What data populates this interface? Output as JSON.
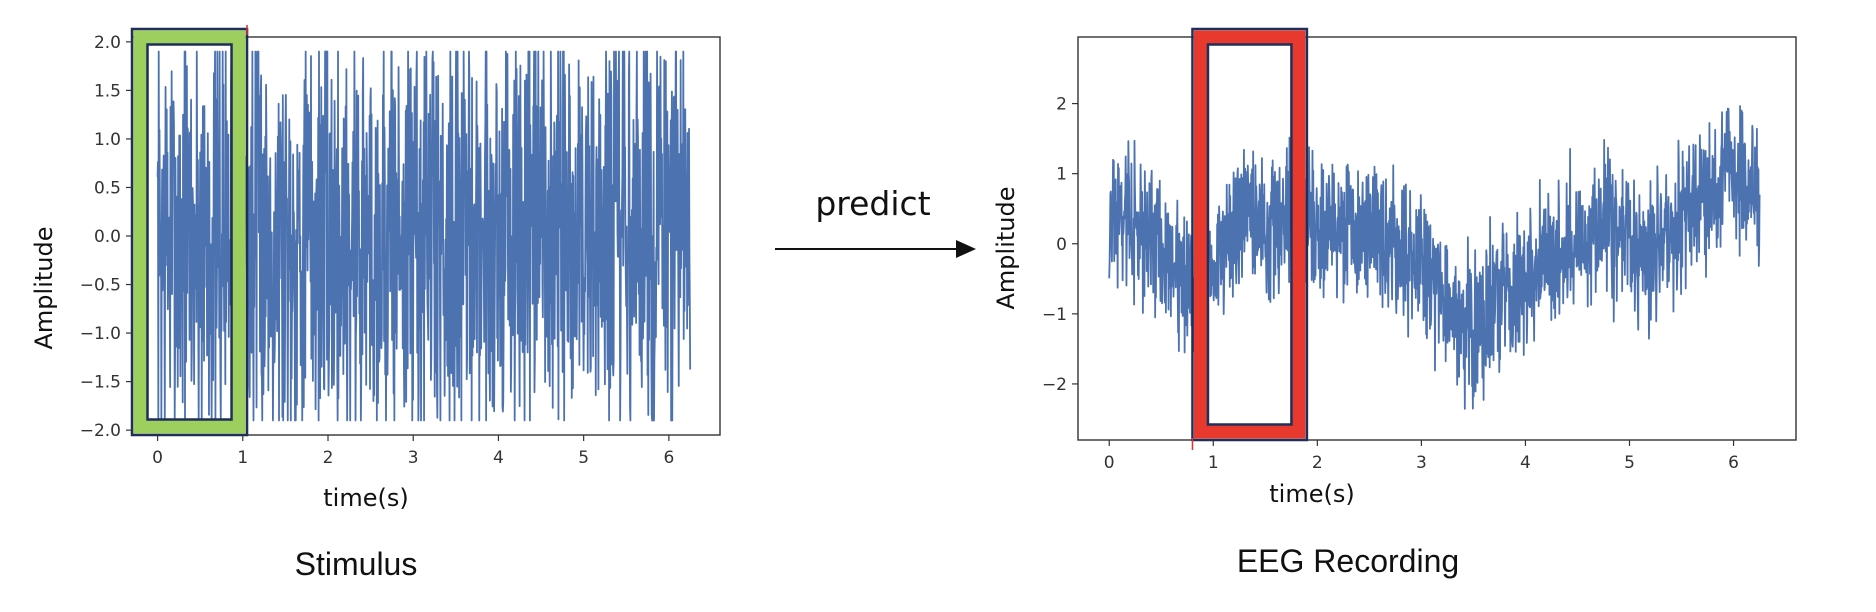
{
  "figure": {
    "arrow_label": "predict"
  },
  "chart_data": [
    {
      "type": "line",
      "caption": "Stimulus",
      "xlabel": "time(s)",
      "ylabel": "Amplitude",
      "xlim": [
        -0.3,
        6.6
      ],
      "ylim": [
        -2.05,
        2.05
      ],
      "xticks": [
        0,
        1,
        2,
        3,
        4,
        5,
        6
      ],
      "yticks": [
        2.0,
        1.5,
        1.0,
        0.5,
        0.0,
        -0.5,
        -1.0,
        -1.5,
        -2.0
      ],
      "ytick_labels": [
        "2.0",
        "1.5",
        "1.0",
        "0.5",
        "0.0",
        "−0.5",
        "−1.0",
        "−1.5",
        "−2.0"
      ],
      "x_range": [
        0,
        6.25
      ],
      "signal": "noise, amplitude clipped at ±1.9",
      "line_color": "#4c72b0",
      "highlight": {
        "x": [
          -0.3,
          1.05
        ],
        "outer_color": "#9dcf5e",
        "inner_color": "#1f2f5a"
      },
      "marker_x": 1.05,
      "marker_color": "#e03030"
    },
    {
      "type": "line",
      "caption": "EEG Recording",
      "xlabel": "time(s)",
      "ylabel": "Amplitude",
      "xlim": [
        -0.3,
        6.6
      ],
      "ylim": [
        -2.8,
        2.95
      ],
      "xticks": [
        0,
        1,
        2,
        3,
        4,
        5,
        6
      ],
      "yticks": [
        2,
        1,
        0,
        -1,
        -2
      ],
      "ytick_labels": [
        "2",
        "1",
        "0",
        "−1",
        "−2"
      ],
      "x_range": [
        0,
        6.25
      ],
      "trend": [
        {
          "x": 0.0,
          "y": 0.6
        },
        {
          "x": 0.5,
          "y": 0.0
        },
        {
          "x": 0.8,
          "y": -0.7
        },
        {
          "x": 1.3,
          "y": 0.3
        },
        {
          "x": 1.7,
          "y": 0.2
        },
        {
          "x": 2.0,
          "y": 0.4
        },
        {
          "x": 2.5,
          "y": 0.1
        },
        {
          "x": 3.0,
          "y": -0.4
        },
        {
          "x": 3.5,
          "y": -1.2
        },
        {
          "x": 4.0,
          "y": -0.4
        },
        {
          "x": 4.5,
          "y": 0.1
        },
        {
          "x": 4.8,
          "y": 0.3
        },
        {
          "x": 5.2,
          "y": -0.2
        },
        {
          "x": 5.6,
          "y": 0.6
        },
        {
          "x": 6.0,
          "y": 1.1
        },
        {
          "x": 6.25,
          "y": 0.8
        }
      ],
      "noise_amplitude": 0.65,
      "line_color": "#4c72b0",
      "highlight": {
        "x": [
          0.8,
          1.9
        ],
        "outer_color": "#e8392f",
        "inner_color": "#1f2f5a"
      },
      "marker_x": 0.8,
      "marker_color": "#e03030"
    }
  ]
}
